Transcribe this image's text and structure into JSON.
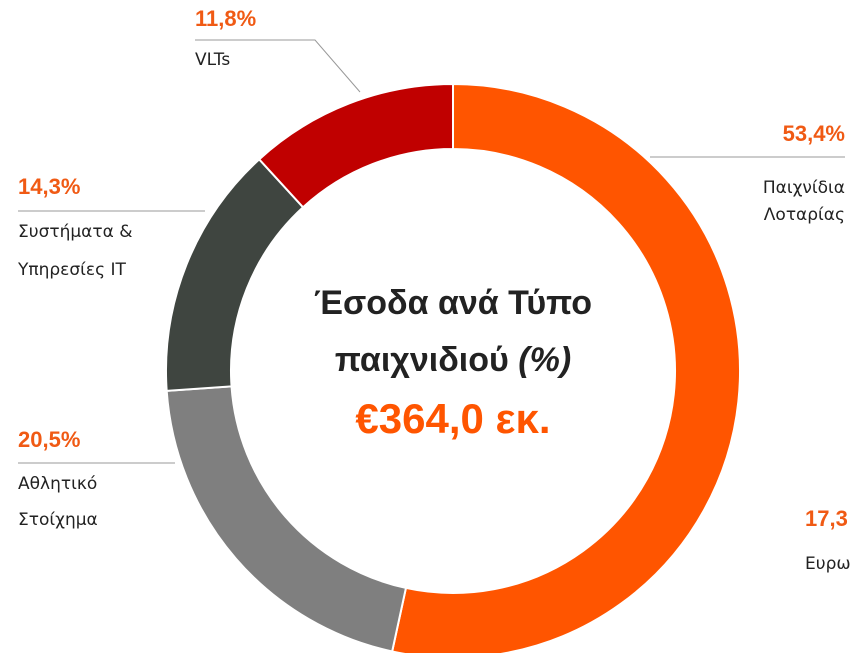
{
  "chart_data": {
    "type": "donut",
    "title": "Έσοδα ανά Τύπο",
    "subtitle": "παιχνιδιού",
    "unit": "(%)",
    "total": "€364,0 εκ.",
    "categories": [
      [
        "Παιχνίδια",
        "Λοταρίας"
      ],
      [
        "Αθλητικό",
        "Στοίχημα"
      ],
      [
        "Συστήματα &",
        "Υπηρεσίες IT"
      ],
      [
        "VLTs"
      ]
    ],
    "values": [
      53.4,
      20.5,
      14.3,
      11.8
    ],
    "value_labels": [
      "53,4%",
      "20,5%",
      "14,3%",
      "11,8%"
    ],
    "colors": [
      "#ff5500",
      "#7f7f7f",
      "#3f4540",
      "#c00000"
    ],
    "annotations": [
      "17,3",
      "Ευρω"
    ]
  }
}
